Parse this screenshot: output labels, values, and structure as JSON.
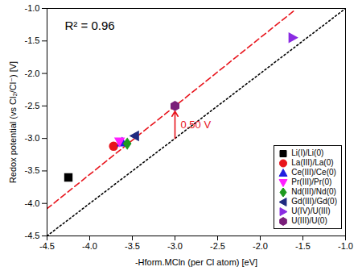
{
  "chart_data": {
    "type": "scatter",
    "x_label": "-Hform.MCln (per Cl atom) [eV]",
    "y_label": "Redox potential (vs Cl₂/Cl⁻) [V]",
    "xlim": [
      -4.5,
      -1.0
    ],
    "ylim": [
      -4.5,
      -1.0
    ],
    "xticks": [
      -4.5,
      {
        "value": -4,
        "label": "-4.0"
      },
      -3.5,
      {
        "value": -3,
        "label": "-3.0"
      },
      -2.5,
      {
        "value": -2,
        "label": "-2.0"
      },
      -1.5,
      {
        "value": -1,
        "label": "-1.0"
      }
    ],
    "yticks": [
      -4.5,
      {
        "value": -4,
        "label": "-4.0"
      },
      -3.5,
      {
        "value": -3,
        "label": "-3.0"
      },
      -2.5,
      {
        "value": -2,
        "label": "-2.0"
      },
      -1.5,
      {
        "value": -1,
        "label": "-1.0"
      }
    ],
    "legend": "lower right",
    "series": [
      {
        "name": "Li(I)/Li(0)",
        "color": "#000000",
        "marker": "square",
        "x": [
          -4.25
        ],
        "values": [
          -3.6
        ]
      },
      {
        "name": "La(III)/La(0)",
        "color": "#e8141c",
        "marker": "circle",
        "x": [
          -3.72
        ],
        "values": [
          -3.12
        ]
      },
      {
        "name": "Ce(III)/Ce(0)",
        "color": "#1f1fe0",
        "marker": "triangle-up",
        "x": [
          -3.62
        ],
        "values": [
          -3.06
        ]
      },
      {
        "name": "Pr(III)/Pr(0)",
        "color": "#ff1fff",
        "marker": "triangle-down",
        "x": [
          -3.65
        ],
        "values": [
          -3.05
        ]
      },
      {
        "name": "Nd(III)/Nd(0)",
        "color": "#1f9a1f",
        "marker": "diamond",
        "x": [
          -3.56
        ],
        "values": [
          -3.08
        ]
      },
      {
        "name": "Gd(III)/Gd(0)",
        "color": "#1f2a80",
        "marker": "triangle-left",
        "x": [
          -3.47
        ],
        "values": [
          -2.96
        ]
      },
      {
        "name": "U(IV)/U(III)",
        "color": "#8a2be2",
        "marker": "triangle-right",
        "x": [
          -1.62
        ],
        "values": [
          -1.45
        ]
      },
      {
        "name": "U(III)/U(0)",
        "color": "#7a1f7a",
        "marker": "hexagon",
        "x": [
          -3.0
        ],
        "values": [
          -2.5
        ]
      }
    ],
    "lines": [
      {
        "color": "#e8141c",
        "line_style": "dashed",
        "x": [
          -4.5,
          -1.6
        ],
        "values": [
          -4.08,
          -1.03
        ]
      },
      {
        "color": "#000000",
        "line_style": "dotted",
        "x": [
          -4.5,
          -1.0
        ],
        "values": [
          -4.5,
          -1.0
        ]
      }
    ],
    "annotations": [
      {
        "text": "R² = 0.96"
      },
      {
        "text": "0.50 V",
        "color": "#e8141c",
        "x": -3.0,
        "y_from": -3.0,
        "y_to": -2.58
      }
    ]
  }
}
